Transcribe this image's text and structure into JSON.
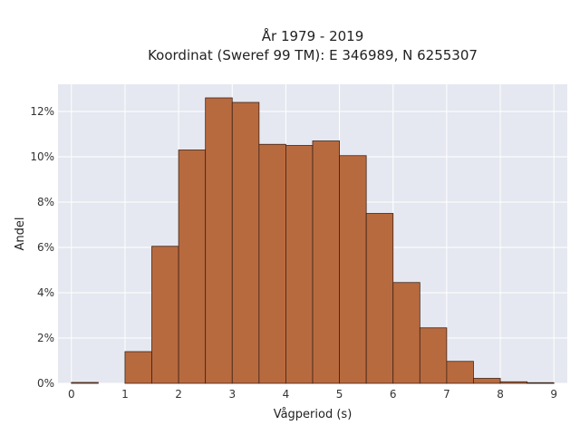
{
  "chart_data": {
    "type": "bar",
    "title_lines": [
      "År 1979 - 2019",
      "Koordinat (Sweref 99 TM): E 346989, N 6255307"
    ],
    "xlabel": "Vågperiod (s)",
    "ylabel": "Andel",
    "x_ticks": [
      "0",
      "1",
      "2",
      "3",
      "4",
      "5",
      "6",
      "7",
      "8",
      "9"
    ],
    "y_ticks": [
      "0%",
      "2%",
      "4%",
      "6%",
      "8%",
      "10%",
      "12%"
    ],
    "xlim": [
      -0.25,
      9.25
    ],
    "ylim": [
      0,
      13.2
    ],
    "bin_width": 0.5,
    "bins": [
      {
        "x0": 0.0,
        "value": 0.04
      },
      {
        "x0": 0.5,
        "value": 0.0
      },
      {
        "x0": 1.0,
        "value": 1.4
      },
      {
        "x0": 1.5,
        "value": 6.05
      },
      {
        "x0": 2.0,
        "value": 10.3
      },
      {
        "x0": 2.5,
        "value": 12.6
      },
      {
        "x0": 3.0,
        "value": 12.4
      },
      {
        "x0": 3.5,
        "value": 10.55
      },
      {
        "x0": 4.0,
        "value": 10.5
      },
      {
        "x0": 4.5,
        "value": 10.7
      },
      {
        "x0": 5.0,
        "value": 10.05
      },
      {
        "x0": 5.5,
        "value": 7.5
      },
      {
        "x0": 6.0,
        "value": 4.45
      },
      {
        "x0": 6.5,
        "value": 2.45
      },
      {
        "x0": 7.0,
        "value": 0.97
      },
      {
        "x0": 7.5,
        "value": 0.22
      },
      {
        "x0": 8.0,
        "value": 0.07
      },
      {
        "x0": 8.5,
        "value": 0.03
      }
    ],
    "grid": true,
    "colors": {
      "bar_fill": "#b86a3f",
      "bar_stroke": "#3d2418",
      "plot_background": "#e5e8f0",
      "grid": "#ffffff"
    }
  }
}
